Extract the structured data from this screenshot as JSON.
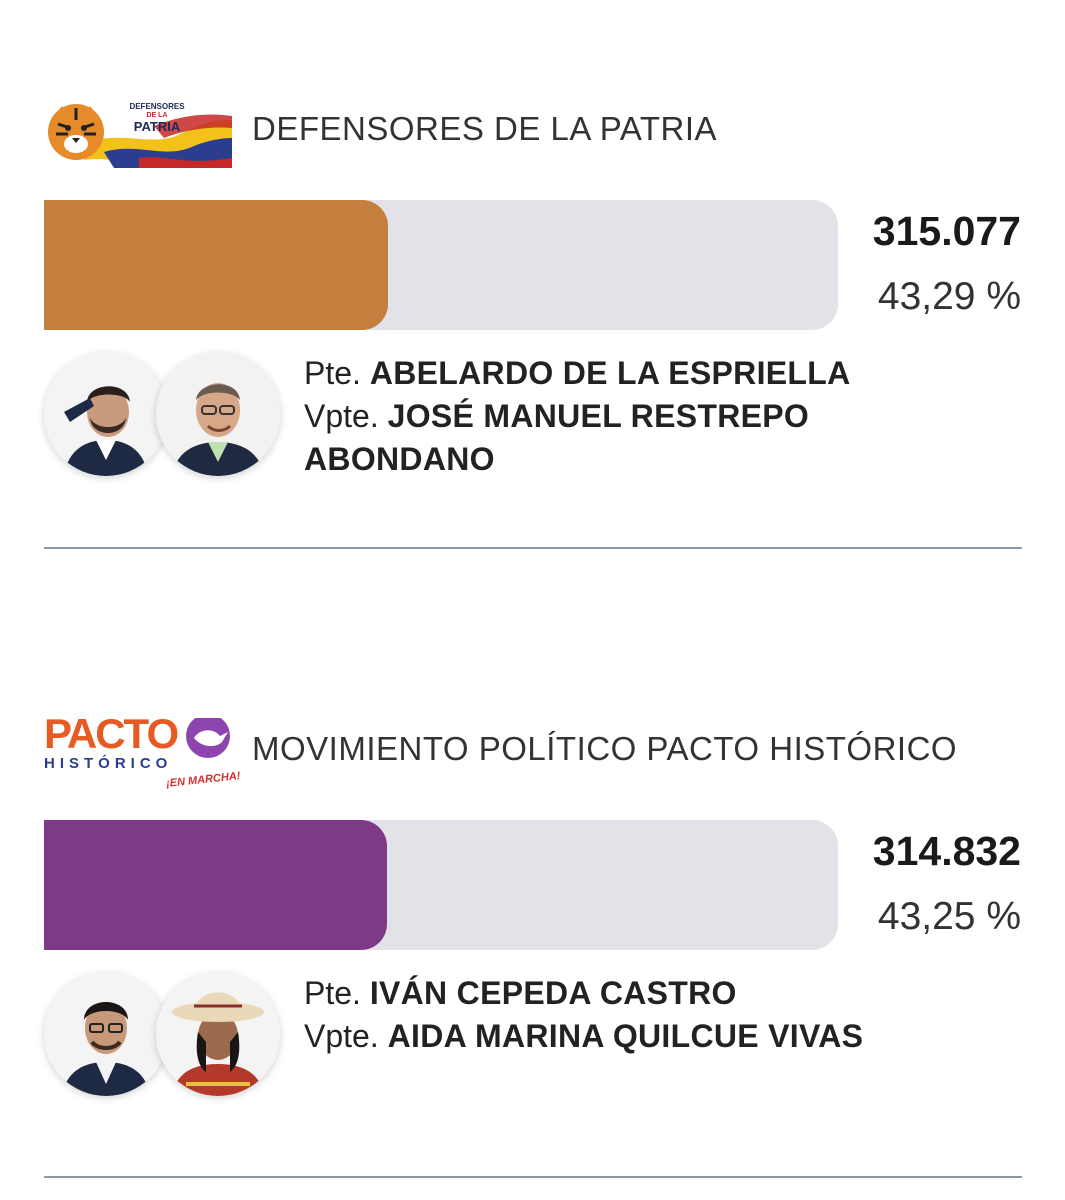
{
  "results": [
    {
      "party_name": "DEFENSORES DE LA PATRIA",
      "logo_text": [
        "DEFENSORES",
        "DE LA",
        "PATRIA"
      ],
      "votes": "315.077",
      "percentage": "43,29 %",
      "share": 0.4329,
      "bar_color": "#c47f3e",
      "president_role": "Pte.",
      "president_name": "ABELARDO DE LA ESPRIELLA",
      "vice_role": "Vpte.",
      "vice_name": "JOSÉ MANUEL RESTREPO ABONDANO"
    },
    {
      "party_name": "MOVIMIENTO POLÍTICO PACTO HISTÓRICO",
      "logo_text": [
        "PACTO",
        "HISTÓRICO",
        "¡EN MARCHA!"
      ],
      "votes": "314.832",
      "percentage": "43,25 %",
      "share": 0.4325,
      "bar_color": "#7e3a87",
      "president_role": "Pte.",
      "president_name": "IVÁN CEPEDA CASTRO",
      "vice_role": "Vpte.",
      "vice_name": "AIDA MARINA QUILCUE VIVAS"
    }
  ]
}
